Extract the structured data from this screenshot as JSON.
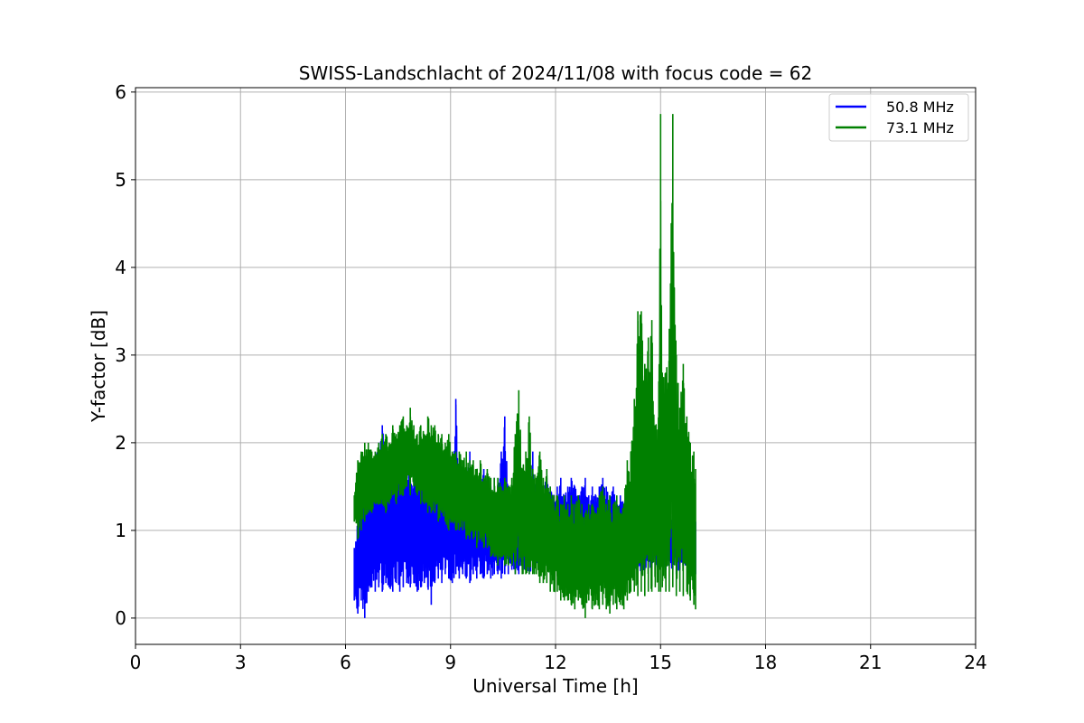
{
  "chart_data": {
    "type": "line",
    "title": "SWISS-Landschlacht of 2024/11/08 with focus code = 62",
    "xlabel": "Universal Time [h]",
    "ylabel": "Y-factor [dB]",
    "xlim": [
      0,
      24
    ],
    "ylim": [
      -0.3,
      6.05
    ],
    "xticks": [
      0,
      3,
      6,
      9,
      12,
      15,
      18,
      21,
      24
    ],
    "yticks": [
      0,
      1,
      2,
      3,
      4,
      5,
      6
    ],
    "grid": true,
    "legend_position": "top-right",
    "series": [
      {
        "name": "50.8 MHz",
        "color": "#0000ff",
        "x": [
          6.25,
          6.35,
          6.45,
          6.55,
          6.65,
          6.75,
          6.85,
          6.95,
          7.05,
          7.15,
          7.25,
          7.35,
          7.45,
          7.55,
          7.65,
          7.75,
          7.85,
          7.95,
          8.05,
          8.15,
          8.25,
          8.35,
          8.45,
          8.55,
          8.65,
          8.75,
          8.85,
          8.95,
          9.05,
          9.15,
          9.25,
          9.35,
          9.45,
          9.55,
          9.65,
          9.75,
          9.85,
          9.95,
          10.05,
          10.15,
          10.25,
          10.35,
          10.45,
          10.55,
          10.65,
          10.75,
          10.85,
          10.95,
          11.05,
          11.15,
          11.25,
          11.35,
          11.45,
          11.55,
          11.65,
          11.75,
          11.85,
          11.95,
          12.05,
          12.15,
          12.25,
          12.35,
          12.45,
          12.55,
          12.65,
          12.75,
          12.85,
          12.95,
          13.05,
          13.15,
          13.25,
          13.35,
          13.45,
          13.55,
          13.65,
          13.75,
          13.85,
          13.95,
          14.05,
          14.15,
          14.25,
          14.35,
          14.45,
          14.55,
          14.65,
          14.75,
          14.85,
          14.95,
          15.05,
          15.15,
          15.25,
          15.35,
          15.45,
          15.55,
          15.65,
          15.75,
          15.85,
          15.95,
          16.0
        ],
        "low": [
          0.2,
          0.05,
          0.2,
          0.0,
          0.3,
          0.35,
          0.3,
          0.35,
          0.3,
          0.4,
          0.35,
          0.3,
          0.4,
          0.3,
          0.35,
          0.4,
          0.35,
          0.4,
          0.3,
          0.35,
          0.4,
          0.35,
          0.15,
          0.4,
          0.45,
          0.4,
          0.5,
          0.45,
          0.4,
          0.5,
          0.45,
          0.5,
          0.45,
          0.4,
          0.5,
          0.45,
          0.5,
          0.45,
          0.5,
          0.45,
          0.5,
          0.5,
          0.45,
          0.5,
          0.5,
          0.55,
          0.5,
          0.5,
          0.55,
          0.55,
          0.5,
          0.6,
          0.55,
          0.6,
          0.55,
          0.6,
          0.5,
          0.55,
          0.6,
          0.6,
          0.55,
          0.6,
          0.55,
          0.6,
          0.55,
          0.6,
          0.5,
          0.6,
          0.55,
          0.6,
          0.5,
          0.6,
          0.55,
          0.5,
          0.6,
          0.5,
          0.55,
          0.5,
          0.55,
          0.6,
          0.55,
          0.6,
          0.5,
          0.55,
          0.6,
          0.55,
          0.6,
          0.55,
          0.6,
          0.55,
          0.6,
          0.55,
          0.5,
          0.55,
          0.6,
          0.55,
          0.5,
          0.55,
          0.5
        ],
        "high": [
          0.8,
          1.2,
          1.4,
          1.3,
          1.5,
          1.6,
          1.8,
          2.0,
          2.2,
          1.9,
          1.7,
          2.0,
          1.6,
          1.8,
          1.7,
          1.7,
          1.9,
          1.6,
          1.8,
          1.7,
          1.9,
          2.1,
          1.7,
          1.8,
          1.6,
          1.7,
          1.8,
          1.6,
          1.7,
          2.5,
          1.6,
          1.7,
          1.6,
          1.9,
          1.5,
          1.6,
          1.5,
          1.7,
          1.6,
          1.5,
          1.6,
          1.5,
          1.9,
          2.3,
          1.5,
          1.4,
          1.5,
          1.6,
          1.4,
          1.5,
          1.4,
          1.9,
          1.5,
          1.4,
          1.5,
          1.6,
          1.5,
          1.4,
          1.5,
          1.6,
          1.4,
          1.5,
          1.6,
          1.5,
          1.4,
          1.5,
          1.6,
          1.4,
          1.5,
          1.4,
          1.5,
          1.6,
          1.5,
          1.4,
          1.5,
          1.3,
          1.4,
          1.3,
          1.4,
          1.2,
          1.3,
          1.4,
          1.3,
          1.2,
          1.3,
          1.4,
          1.3,
          1.4,
          1.3,
          1.4,
          1.3,
          1.2,
          1.4,
          1.3,
          1.2,
          1.3,
          1.5,
          1.3,
          1.1
        ]
      },
      {
        "name": "73.1 MHz",
        "color": "#008000",
        "x": [
          6.25,
          6.35,
          6.45,
          6.55,
          6.65,
          6.75,
          6.85,
          6.95,
          7.05,
          7.15,
          7.25,
          7.35,
          7.45,
          7.55,
          7.65,
          7.75,
          7.85,
          7.95,
          8.05,
          8.15,
          8.25,
          8.35,
          8.45,
          8.55,
          8.65,
          8.75,
          8.85,
          8.95,
          9.05,
          9.15,
          9.25,
          9.35,
          9.45,
          9.55,
          9.65,
          9.75,
          9.85,
          9.95,
          10.05,
          10.15,
          10.25,
          10.35,
          10.45,
          10.55,
          10.65,
          10.75,
          10.85,
          10.95,
          11.05,
          11.15,
          11.25,
          11.35,
          11.45,
          11.55,
          11.65,
          11.75,
          11.85,
          11.95,
          12.05,
          12.15,
          12.25,
          12.35,
          12.45,
          12.55,
          12.65,
          12.75,
          12.85,
          12.95,
          13.05,
          13.15,
          13.25,
          13.35,
          13.45,
          13.55,
          13.65,
          13.75,
          13.85,
          13.95,
          14.05,
          14.15,
          14.25,
          14.35,
          14.45,
          14.55,
          14.65,
          14.75,
          14.85,
          14.95,
          15.0,
          15.05,
          15.15,
          15.25,
          15.35,
          15.45,
          15.55,
          15.65,
          15.75,
          15.85,
          15.95,
          16.0
        ],
        "low": [
          1.1,
          0.9,
          1.0,
          1.1,
          1.2,
          1.2,
          1.3,
          1.3,
          1.3,
          1.2,
          1.3,
          1.4,
          1.3,
          1.4,
          1.4,
          1.5,
          1.4,
          1.5,
          1.4,
          1.3,
          1.3,
          1.2,
          1.2,
          1.2,
          1.1,
          1.2,
          1.1,
          1.0,
          1.1,
          1.0,
          1.0,
          1.0,
          0.9,
          0.9,
          0.9,
          0.8,
          0.9,
          0.8,
          0.8,
          0.7,
          0.7,
          0.6,
          0.7,
          0.6,
          0.6,
          0.6,
          0.5,
          0.6,
          0.5,
          0.5,
          0.5,
          0.5,
          0.5,
          0.4,
          0.4,
          0.4,
          0.3,
          0.3,
          0.3,
          0.2,
          0.2,
          0.2,
          0.15,
          0.1,
          0.2,
          0.15,
          0.0,
          0.2,
          0.1,
          0.15,
          0.1,
          0.15,
          0.1,
          0.05,
          0.15,
          0.1,
          0.15,
          0.1,
          0.2,
          0.3,
          0.3,
          0.25,
          0.3,
          0.25,
          0.3,
          0.3,
          0.35,
          0.3,
          0.3,
          0.35,
          0.3,
          0.3,
          0.35,
          0.25,
          0.3,
          0.25,
          0.3,
          0.2,
          0.15,
          0.1
        ],
        "high": [
          1.4,
          1.8,
          1.9,
          2.0,
          2.0,
          1.9,
          1.9,
          2.0,
          2.1,
          2.1,
          2.0,
          2.2,
          2.1,
          2.2,
          2.3,
          2.2,
          2.4,
          2.2,
          2.1,
          2.2,
          2.1,
          2.3,
          2.2,
          2.2,
          2.1,
          2.1,
          2.0,
          2.1,
          1.9,
          1.9,
          1.9,
          1.8,
          1.9,
          1.8,
          1.8,
          1.7,
          1.8,
          1.6,
          1.7,
          1.6,
          1.6,
          1.6,
          1.5,
          1.6,
          1.5,
          1.6,
          2.1,
          2.6,
          1.7,
          1.9,
          2.3,
          1.7,
          1.6,
          1.9,
          1.6,
          1.7,
          1.5,
          1.4,
          1.4,
          1.3,
          1.4,
          1.3,
          1.4,
          1.3,
          1.4,
          1.3,
          1.2,
          1.3,
          1.3,
          1.2,
          1.4,
          1.5,
          1.3,
          1.4,
          1.3,
          1.4,
          1.2,
          1.3,
          1.8,
          1.9,
          2.5,
          3.5,
          3.5,
          2.9,
          3.2,
          3.4,
          2.2,
          2.7,
          5.75,
          2.8,
          2.8,
          3.3,
          5.75,
          3.0,
          2.4,
          2.9,
          2.3,
          2.0,
          1.9,
          1.7
        ]
      }
    ]
  }
}
